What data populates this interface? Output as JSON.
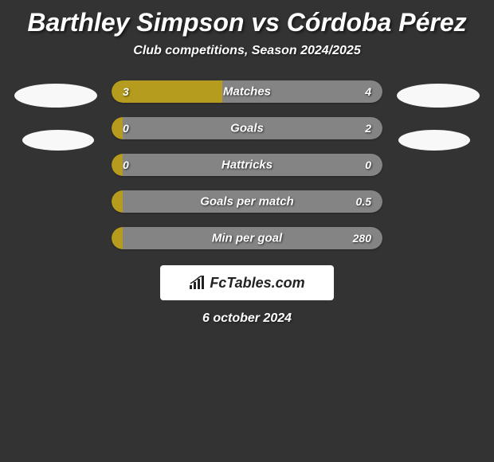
{
  "title": "Barthley Simpson vs Córdoba Pérez",
  "subtitle": "Club competitions, Season 2024/2025",
  "colors": {
    "background": "#333333",
    "left_bar": "#b59c1e",
    "right_bar": "#848484",
    "avatar": "#f8f8f8",
    "text": "#ffffff"
  },
  "rows": [
    {
      "label": "Matches",
      "left_value": "3",
      "right_value": "4",
      "left_pct": 41
    },
    {
      "label": "Goals",
      "left_value": "0",
      "right_value": "2",
      "left_pct": 4
    },
    {
      "label": "Hattricks",
      "left_value": "0",
      "right_value": "0",
      "left_pct": 4
    },
    {
      "label": "Goals per match",
      "left_value": "",
      "right_value": "0.5",
      "left_pct": 4
    },
    {
      "label": "Min per goal",
      "left_value": "",
      "right_value": "280",
      "left_pct": 4
    }
  ],
  "brand": "FcTables.com",
  "date": "6 october 2024"
}
